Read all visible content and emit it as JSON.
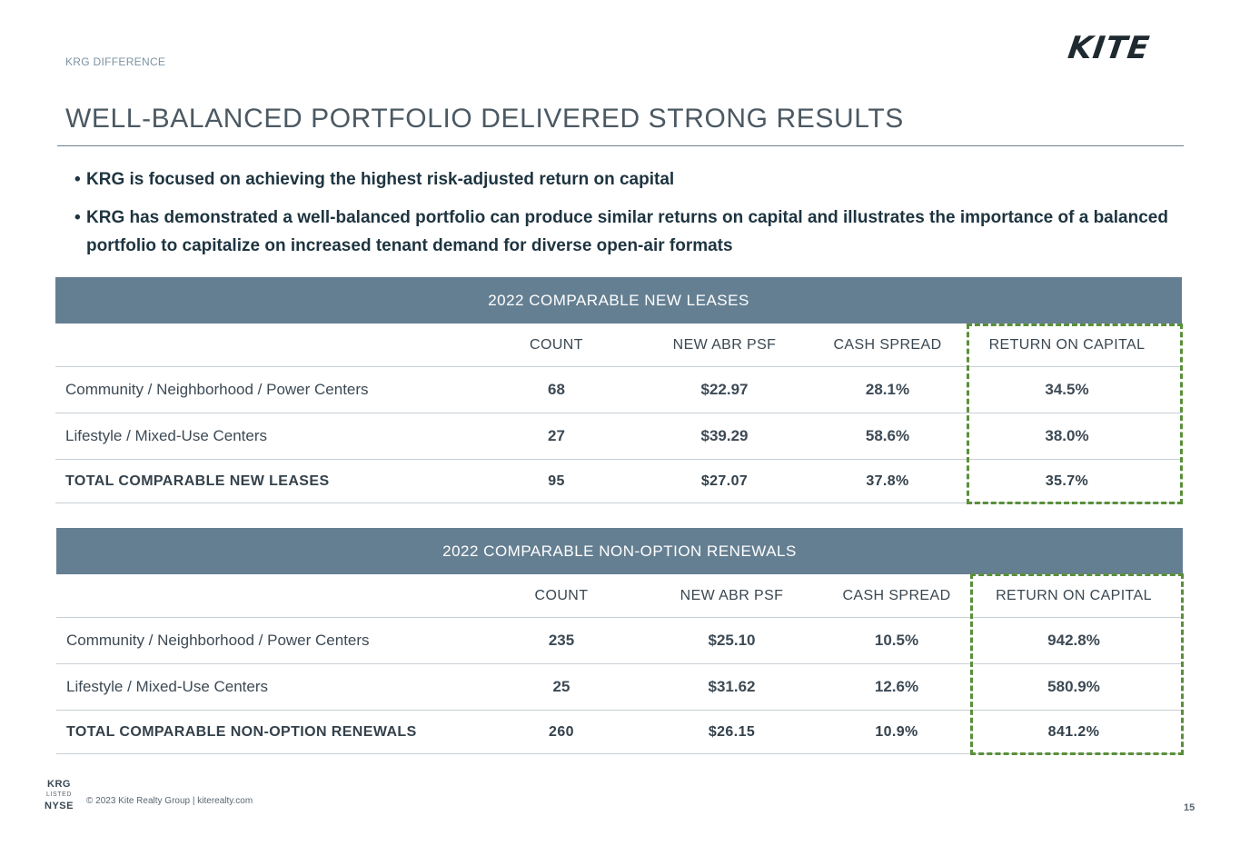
{
  "section_tag": "KRG DIFFERENCE",
  "logo_text": "KITE",
  "title": "WELL-BALANCED PORTFOLIO DELIVERED STRONG RESULTS",
  "bullets": [
    "KRG is focused on achieving the highest risk-adjusted return on capital",
    "KRG has demonstrated a well-balanced portfolio can produce similar returns on capital and illustrates the importance of a balanced portfolio to capitalize on increased tenant demand for diverse open-air formats"
  ],
  "columns": [
    "COUNT",
    "NEW ABR PSF",
    "CASH SPREAD",
    "RETURN ON CAPITAL"
  ],
  "accent_color": "#657f92",
  "highlight_color": "#5a8f3a",
  "new_leases": {
    "heading": "2022 COMPARABLE NEW LEASES",
    "rows": [
      {
        "label": "Community / Neighborhood / Power Centers",
        "count": "68",
        "abr": "$22.97",
        "spread": "28.1%",
        "roc": "34.5%"
      },
      {
        "label": "Lifestyle / Mixed-Use Centers",
        "count": "27",
        "abr": "$39.29",
        "spread": "58.6%",
        "roc": "38.0%"
      }
    ],
    "total": {
      "label": "TOTAL COMPARABLE NEW LEASES",
      "count": "95",
      "abr": "$27.07",
      "spread": "37.8%",
      "roc": "35.7%"
    }
  },
  "renewals": {
    "heading": "2022 COMPARABLE NON-OPTION RENEWALS",
    "rows": [
      {
        "label": "Community / Neighborhood / Power Centers",
        "count": "235",
        "abr": "$25.10",
        "spread": "10.5%",
        "roc": "942.8%"
      },
      {
        "label": "Lifestyle / Mixed-Use Centers",
        "count": "25",
        "abr": "$31.62",
        "spread": "12.6%",
        "roc": "580.9%"
      }
    ],
    "total": {
      "label": "TOTAL COMPARABLE NON-OPTION RENEWALS",
      "count": "260",
      "abr": "$26.15",
      "spread": "10.9%",
      "roc": "841.2%"
    }
  },
  "footer": {
    "badge_top": "KRG",
    "badge_mid": "LISTED",
    "badge_bottom": "NYSE",
    "copyright": "© 2023 Kite Realty Group | kiterealty.com",
    "page_number": "15"
  }
}
